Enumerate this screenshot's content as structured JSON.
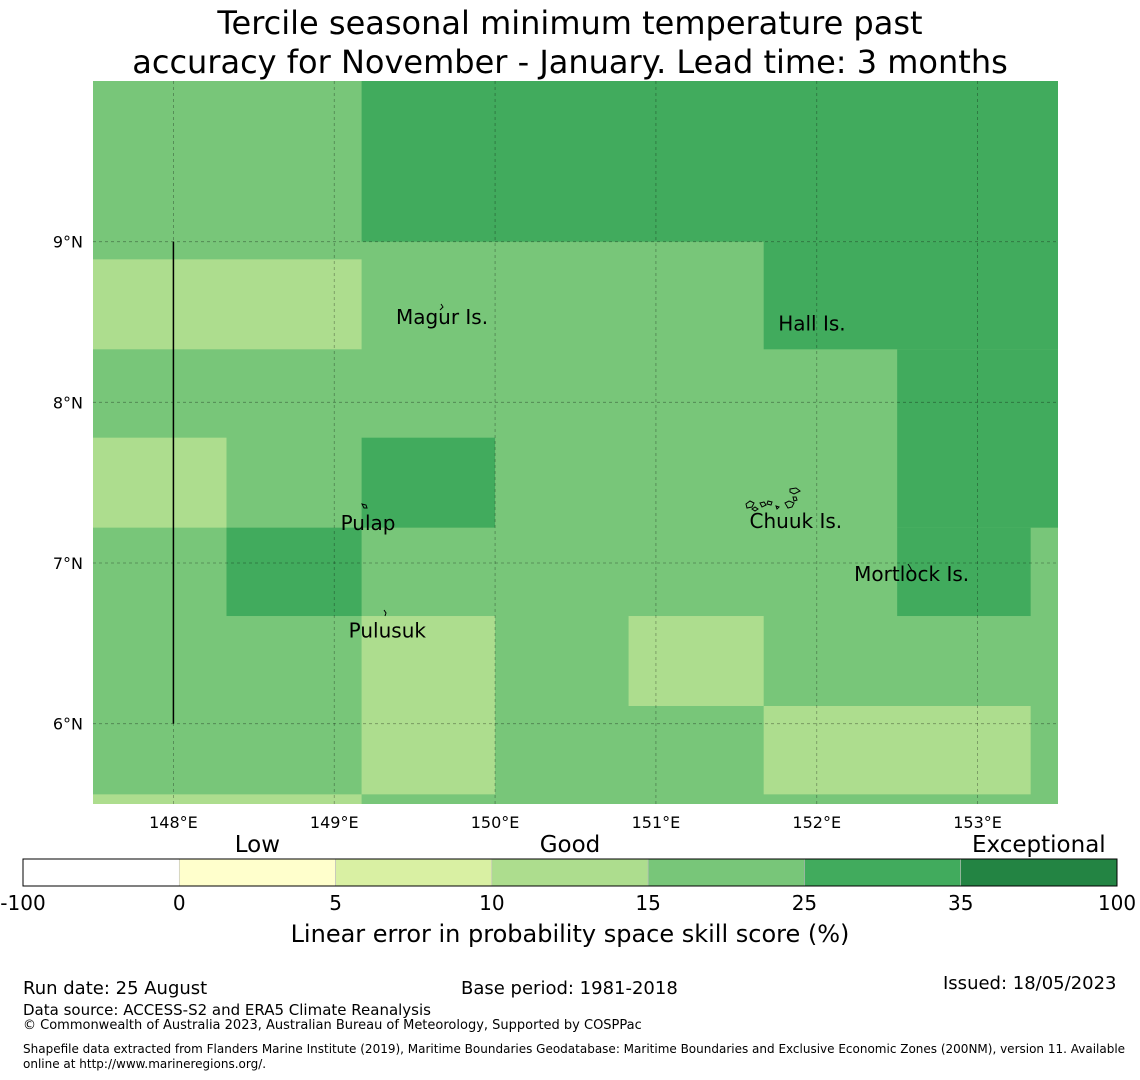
{
  "title": {
    "line1": "Tercile seasonal minimum temperature past",
    "line2": "accuracy for November - January. Lead time: 3 months"
  },
  "map": {
    "lon_range": [
      147.5,
      153.5
    ],
    "lat_range": [
      5.5,
      10.0
    ],
    "lon_ticks": [
      {
        "value": 148,
        "label": "148°E"
      },
      {
        "value": 149,
        "label": "149°E"
      },
      {
        "value": 150,
        "label": "150°E"
      },
      {
        "value": 151,
        "label": "151°E"
      },
      {
        "value": 152,
        "label": "152°E"
      },
      {
        "value": 153,
        "label": "153°E"
      }
    ],
    "lat_ticks": [
      {
        "value": 9,
        "label": "9°N"
      },
      {
        "value": 8,
        "label": "8°N"
      },
      {
        "value": 7,
        "label": "7°N"
      },
      {
        "value": 6,
        "label": "6°N"
      }
    ],
    "gridlines": true,
    "base_category": 4,
    "cells": [
      {
        "lon": [
          149.17,
          153.5
        ],
        "lat": [
          9.0,
          10.0
        ],
        "category": 5
      },
      {
        "lon": [
          147.5,
          149.17
        ],
        "lat": [
          8.33,
          8.89
        ],
        "category": 3
      },
      {
        "lon": [
          151.67,
          153.5
        ],
        "lat": [
          8.33,
          9.0
        ],
        "category": 5
      },
      {
        "lon": [
          152.5,
          153.5
        ],
        "lat": [
          7.22,
          8.33
        ],
        "category": 5
      },
      {
        "lon": [
          152.5,
          153.33
        ],
        "lat": [
          6.67,
          7.22
        ],
        "category": 5
      },
      {
        "lon": [
          147.5,
          148.33
        ],
        "lat": [
          7.22,
          7.78
        ],
        "category": 3
      },
      {
        "lon": [
          149.17,
          150.0
        ],
        "lat": [
          7.22,
          7.78
        ],
        "category": 5
      },
      {
        "lon": [
          148.33,
          149.17
        ],
        "lat": [
          6.67,
          7.22
        ],
        "category": 5
      },
      {
        "lon": [
          149.17,
          150.0
        ],
        "lat": [
          5.56,
          6.67
        ],
        "category": 3
      },
      {
        "lon": [
          150.83,
          151.67
        ],
        "lat": [
          6.11,
          6.67
        ],
        "category": 3
      },
      {
        "lon": [
          151.67,
          153.33
        ],
        "lat": [
          5.56,
          6.11
        ],
        "category": 3
      },
      {
        "lon": [
          147.5,
          149.17
        ],
        "lat": [
          5.5,
          5.56
        ],
        "category": 3
      }
    ],
    "meridian_line": {
      "lon": 148.0,
      "lat": [
        6.0,
        9.0
      ]
    },
    "places": [
      {
        "name": "Magur Is.",
        "lon": 149.67,
        "lat": 8.53
      },
      {
        "name": "Hall Is.",
        "lon": 151.97,
        "lat": 8.49
      },
      {
        "name": "Pulap",
        "lon": 149.21,
        "lat": 7.25
      },
      {
        "name": "Chuuk Is.",
        "lon": 151.87,
        "lat": 7.26
      },
      {
        "name": "Mortlock Is.",
        "lon": 152.59,
        "lat": 6.93
      },
      {
        "name": "Pulusuk",
        "lon": 149.33,
        "lat": 6.58
      }
    ]
  },
  "colorbar": {
    "colors": [
      "#ffffff",
      "#ffffcc",
      "#d9f0a3",
      "#addd8e",
      "#78c679",
      "#41ab5d",
      "#238443"
    ],
    "ticks": [
      "-100",
      "0",
      "5",
      "10",
      "15",
      "25",
      "35",
      "100"
    ],
    "category_labels": [
      {
        "text": "Low",
        "index": 1
      },
      {
        "text": "Good",
        "index": 3
      },
      {
        "text": "Exceptional",
        "index": 6
      }
    ],
    "label": "Linear error in probability space skill score (%)"
  },
  "footer": {
    "run_date": "Run date: 25 August",
    "base_period": "Base period: 1981-2018",
    "issued": "Issued: 18/05/2023",
    "data_source": "Data source: ACCESS-S2 and ERA5 Climate Reanalysis",
    "copyright": "© Commonwealth of Australia 2023, Australian Bureau of Meteorology, Supported by COSPPac",
    "shapefile_line1": "Shapefile data extracted from Flanders Marine Institute (2019), Maritime Boundaries Geodatabase: Maritime Boundaries and Exclusive Economic Zones (200NM), version 11. Available",
    "shapefile_line2": "online at http://www.marineregions.org/."
  }
}
